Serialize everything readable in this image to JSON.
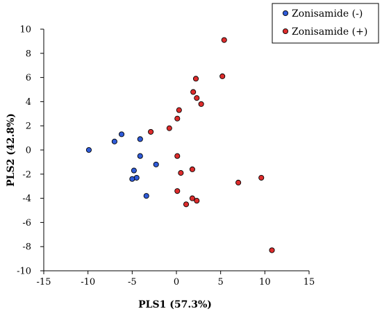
{
  "chart_data": {
    "type": "scatter",
    "xlabel": "PLS1 (57.3%)",
    "ylabel": "PLS2 (42.8%)",
    "xlim": [
      -15,
      15
    ],
    "ylim": [
      -10,
      10
    ],
    "xticks": [
      -15,
      -10,
      -5,
      0,
      5,
      10,
      15
    ],
    "yticks": [
      -10,
      -8,
      -6,
      -4,
      -2,
      0,
      2,
      4,
      6,
      8,
      10
    ],
    "grid": false,
    "legend_position": "top-right",
    "series": [
      {
        "name": "Zonisamide (-)",
        "color": "#2f5bd8",
        "points": [
          [
            -9.9,
            0.0
          ],
          [
            -7.0,
            0.7
          ],
          [
            -6.2,
            1.3
          ],
          [
            -4.1,
            0.9
          ],
          [
            -4.1,
            -0.5
          ],
          [
            -2.3,
            -1.2
          ],
          [
            -4.8,
            -1.7
          ],
          [
            -4.5,
            -2.3
          ],
          [
            -5.0,
            -2.4
          ],
          [
            -3.4,
            -3.8
          ]
        ]
      },
      {
        "name": "Zonisamide (+)",
        "color": "#dd2c2c",
        "points": [
          [
            5.4,
            9.1
          ],
          [
            2.2,
            5.9
          ],
          [
            5.2,
            6.1
          ],
          [
            1.9,
            4.8
          ],
          [
            2.3,
            4.3
          ],
          [
            2.8,
            3.8
          ],
          [
            0.3,
            3.3
          ],
          [
            0.1,
            2.6
          ],
          [
            -0.8,
            1.8
          ],
          [
            -2.9,
            1.5
          ],
          [
            0.1,
            -0.5
          ],
          [
            1.8,
            -1.6
          ],
          [
            0.5,
            -1.9
          ],
          [
            9.6,
            -2.3
          ],
          [
            7.0,
            -2.7
          ],
          [
            0.1,
            -3.4
          ],
          [
            1.8,
            -4.0
          ],
          [
            2.3,
            -4.2
          ],
          [
            1.1,
            -4.5
          ],
          [
            10.8,
            -8.3
          ]
        ]
      }
    ]
  }
}
